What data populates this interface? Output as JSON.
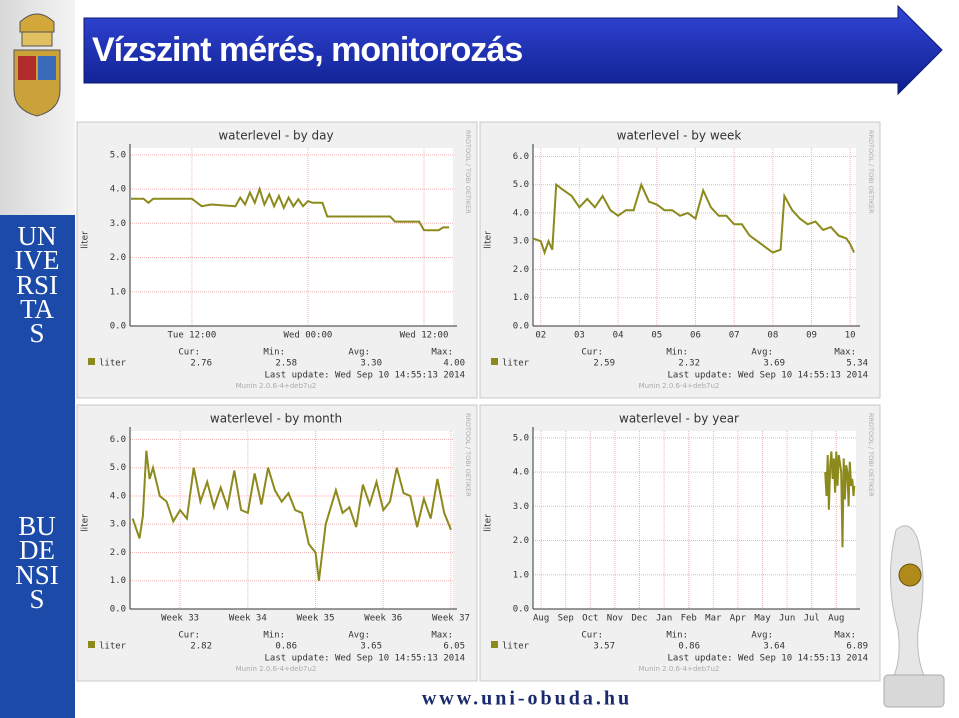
{
  "slide": {
    "title": "Vízszint mérés, monitorozás",
    "sidebar": [
      "UNIVERSITAS",
      "BUDENSIS"
    ],
    "footer": "www.uni-obuda.hu"
  },
  "chart_data": [
    {
      "type": "line",
      "title": "waterlevel - by day",
      "y_label": "liter",
      "x": [
        5.7,
        7,
        7.5,
        8,
        10,
        12,
        13,
        14,
        16.5,
        17,
        17.5,
        18,
        18.5,
        19,
        19.5,
        20,
        20.5,
        21,
        21.5,
        22,
        22.5,
        23,
        23.5,
        24,
        24.5,
        25.5,
        26,
        30,
        32.5,
        33,
        35.5,
        36,
        37.5,
        38,
        38.6
      ],
      "series": [
        {
          "name": "liter",
          "color": "#8c8a1c",
          "values": [
            3.72,
            3.72,
            3.6,
            3.72,
            3.72,
            3.72,
            3.5,
            3.55,
            3.5,
            3.75,
            3.55,
            3.9,
            3.6,
            4.0,
            3.55,
            3.85,
            3.5,
            3.8,
            3.45,
            3.75,
            3.5,
            3.7,
            3.5,
            3.65,
            3.6,
            3.6,
            3.2,
            3.2,
            3.2,
            3.05,
            3.05,
            2.8,
            2.8,
            2.88,
            2.88
          ]
        }
      ],
      "xlim": [
        5.6,
        39
      ],
      "ylim": [
        0,
        5.2
      ],
      "xticks": [
        {
          "value": 12,
          "label": "Tue 12:00"
        },
        {
          "value": 24,
          "label": "Wed 00:00"
        },
        {
          "value": 36,
          "label": "Wed 12:00"
        }
      ],
      "yticks": [
        {
          "value": 0,
          "label": "0.0"
        },
        {
          "value": 1,
          "label": "1.0"
        },
        {
          "value": 2,
          "label": "2.0"
        },
        {
          "value": 3,
          "label": "3.0"
        },
        {
          "value": 4,
          "label": "4.0"
        },
        {
          "value": 5,
          "label": "5.0"
        }
      ],
      "grid": true,
      "stats": {
        "headers": [
          "Cur:",
          "Min:",
          "Avg:",
          "Max:"
        ],
        "values": [
          "2.76",
          "2.58",
          "3.30",
          "4.00"
        ]
      },
      "last_update": "Last update: Wed Sep 10 14:55:13 2014",
      "footer": "Munin 2.0.6-4+deb7u2",
      "side_label": "RRDTOOL / TOBI OETIKER"
    },
    {
      "type": "line",
      "title": "waterlevel - by week",
      "y_label": "liter",
      "x": [
        1.8,
        2.0,
        2.1,
        2.2,
        2.3,
        2.4,
        2.6,
        2.8,
        3.0,
        3.2,
        3.4,
        3.6,
        3.8,
        4.0,
        4.2,
        4.4,
        4.6,
        4.8,
        5.0,
        5.2,
        5.4,
        5.6,
        5.8,
        6.0,
        6.2,
        6.4,
        6.6,
        6.8,
        7.0,
        7.2,
        7.4,
        7.6,
        7.8,
        8.0,
        8.2,
        8.3,
        8.5,
        8.7,
        8.9,
        9.1,
        9.3,
        9.5,
        9.7,
        9.9,
        10.0,
        10.1
      ],
      "series": [
        {
          "name": "liter",
          "color": "#8c8a1c",
          "values": [
            3.1,
            3.0,
            2.6,
            3.0,
            2.7,
            5.0,
            4.8,
            4.6,
            4.2,
            4.5,
            4.2,
            4.6,
            4.1,
            3.9,
            4.1,
            4.1,
            5.0,
            4.4,
            4.3,
            4.1,
            4.1,
            3.9,
            4.0,
            3.8,
            4.8,
            4.2,
            3.9,
            3.9,
            3.6,
            3.6,
            3.2,
            3.0,
            2.8,
            2.6,
            2.7,
            4.6,
            4.1,
            3.8,
            3.6,
            3.7,
            3.4,
            3.5,
            3.2,
            3.1,
            2.9,
            2.6
          ]
        }
      ],
      "xlim": [
        1.8,
        10.15
      ],
      "ylim": [
        0,
        6.3
      ],
      "xticks": [
        {
          "value": 2,
          "label": "02"
        },
        {
          "value": 3,
          "label": "03"
        },
        {
          "value": 4,
          "label": "04"
        },
        {
          "value": 5,
          "label": "05"
        },
        {
          "value": 6,
          "label": "06"
        },
        {
          "value": 7,
          "label": "07"
        },
        {
          "value": 8,
          "label": "08"
        },
        {
          "value": 9,
          "label": "09"
        },
        10
      ],
      "yticks": [
        {
          "value": 0,
          "label": "0.0"
        },
        {
          "value": 1,
          "label": "1.0"
        },
        {
          "value": 2,
          "label": "2.0"
        },
        {
          "value": 3,
          "label": "3.0"
        },
        {
          "value": 4,
          "label": "4.0"
        },
        {
          "value": 5,
          "label": "5.0"
        },
        {
          "value": 6,
          "label": "6.0"
        }
      ],
      "grid": true,
      "stats": {
        "headers": [
          "Cur:",
          "Min:",
          "Avg:",
          "Max:"
        ],
        "values": [
          "2.59",
          "2.32",
          "3.69",
          "5.34"
        ]
      },
      "last_update": "Last update: Wed Sep 10 14:55:13 2014",
      "footer": "Munin 2.0.6-4+deb7u2",
      "side_label": "RRDTOOL / TOBI OETIKER"
    },
    {
      "type": "line",
      "title": "waterlevel - by month",
      "y_label": "liter",
      "x": [
        32.3,
        32.4,
        32.45,
        32.5,
        32.55,
        32.6,
        32.7,
        32.8,
        32.9,
        33.0,
        33.1,
        33.2,
        33.3,
        33.4,
        33.5,
        33.6,
        33.7,
        33.8,
        33.9,
        34.0,
        34.1,
        34.2,
        34.3,
        34.4,
        34.5,
        34.6,
        34.7,
        34.8,
        34.9,
        35.0,
        35.05,
        35.15,
        35.3,
        35.4,
        35.5,
        35.6,
        35.7,
        35.8,
        35.9,
        36.0,
        36.1,
        36.2,
        36.3,
        36.4,
        36.5,
        36.6,
        36.7,
        36.8,
        36.9,
        37.0
      ],
      "series": [
        {
          "name": "liter",
          "color": "#8c8a1c",
          "values": [
            3.2,
            2.5,
            3.3,
            5.6,
            4.6,
            5.0,
            4.0,
            3.8,
            3.1,
            3.5,
            3.2,
            5.0,
            3.8,
            4.5,
            3.6,
            4.3,
            3.6,
            4.9,
            3.5,
            3.4,
            4.8,
            3.7,
            5.0,
            4.2,
            3.8,
            4.1,
            3.5,
            3.4,
            2.3,
            2.0,
            1.0,
            3.0,
            4.2,
            3.4,
            3.6,
            2.9,
            4.4,
            3.7,
            4.5,
            3.5,
            3.8,
            5.0,
            4.1,
            4.0,
            2.9,
            3.9,
            3.2,
            4.6,
            3.4,
            2.8
          ]
        }
      ],
      "xlim": [
        32.26,
        37.03
      ],
      "ylim": [
        0,
        6.3
      ],
      "xticks": [
        {
          "value": 33,
          "label": "Week 33"
        },
        {
          "value": 34,
          "label": "Week 34"
        },
        {
          "value": 35,
          "label": "Week 35"
        },
        {
          "value": 36,
          "label": "Week 36"
        },
        {
          "value": 37,
          "label": "Week 37"
        }
      ],
      "yticks": [
        {
          "value": 0,
          "label": "0.0"
        },
        {
          "value": 1,
          "label": "1.0"
        },
        {
          "value": 2,
          "label": "2.0"
        },
        {
          "value": 3,
          "label": "3.0"
        },
        {
          "value": 4,
          "label": "4.0"
        },
        {
          "value": 5,
          "label": "5.0"
        },
        {
          "value": 6,
          "label": "6.0"
        }
      ],
      "grid": true,
      "stats": {
        "headers": [
          "Cur:",
          "Min:",
          "Avg:",
          "Max:"
        ],
        "values": [
          "2.82",
          "0.86",
          "3.65",
          "6.05"
        ]
      },
      "last_update": "Last update: Wed Sep 10 14:55:13 2014",
      "footer": "Munin 2.0.6-4+deb7u2",
      "side_label": "RRDTOOL / TOBI OETIKER"
    },
    {
      "type": "line",
      "title": "waterlevel - by year",
      "y_label": "liter",
      "x": [
        11.55,
        11.6,
        11.65,
        11.7,
        11.75,
        11.8,
        11.85,
        11.9,
        11.95,
        12.0,
        12.05,
        12.1,
        12.2,
        12.25,
        12.3,
        12.35,
        12.4,
        12.45,
        12.5,
        12.55,
        12.6,
        12.65,
        12.7,
        12.73
      ],
      "series": [
        {
          "name": "liter",
          "color": "#8c8a1c",
          "values": [
            4.0,
            3.3,
            4.5,
            2.9,
            4.2,
            4.6,
            3.8,
            4.4,
            3.4,
            4.6,
            3.6,
            4.5,
            4.0,
            1.8,
            4.4,
            3.2,
            4.2,
            4.0,
            3.0,
            4.3,
            3.6,
            3.8,
            3.3,
            3.6
          ]
        }
      ],
      "xlim": [
        -0.33,
        12.8
      ],
      "ylim": [
        0,
        5.2
      ],
      "xticks": [
        {
          "value": 0,
          "label": "Aug"
        },
        {
          "value": 1,
          "label": "Sep"
        },
        {
          "value": 2,
          "label": "Oct"
        },
        {
          "value": 3,
          "label": "Nov"
        },
        {
          "value": 4,
          "label": "Dec"
        },
        {
          "value": 5,
          "label": "Jan"
        },
        {
          "value": 6,
          "label": "Feb"
        },
        {
          "value": 7,
          "label": "Mar"
        },
        {
          "value": 8,
          "label": "Apr"
        },
        {
          "value": 9,
          "label": "May"
        },
        {
          "value": 10,
          "label": "Jun"
        },
        {
          "value": 11,
          "label": "Jul"
        },
        {
          "value": 12,
          "label": "Aug"
        }
      ],
      "yticks": [
        {
          "value": 0,
          "label": "0.0"
        },
        {
          "value": 1,
          "label": "1.0"
        },
        {
          "value": 2,
          "label": "2.0"
        },
        {
          "value": 3,
          "label": "3.0"
        },
        {
          "value": 4,
          "label": "4.0"
        },
        {
          "value": 5,
          "label": "5.0"
        }
      ],
      "grid": true,
      "stats": {
        "headers": [
          "Cur:",
          "Min:",
          "Avg:",
          "Max:"
        ],
        "values": [
          "3.57",
          "0.86",
          "3.64",
          "6.89"
        ]
      },
      "last_update": "Last update: Wed Sep 10 14:55:13 2014",
      "footer": "Munin 2.0.6-4+deb7u2",
      "side_label": "RRDTOOL / TOBI OETIKER"
    }
  ]
}
